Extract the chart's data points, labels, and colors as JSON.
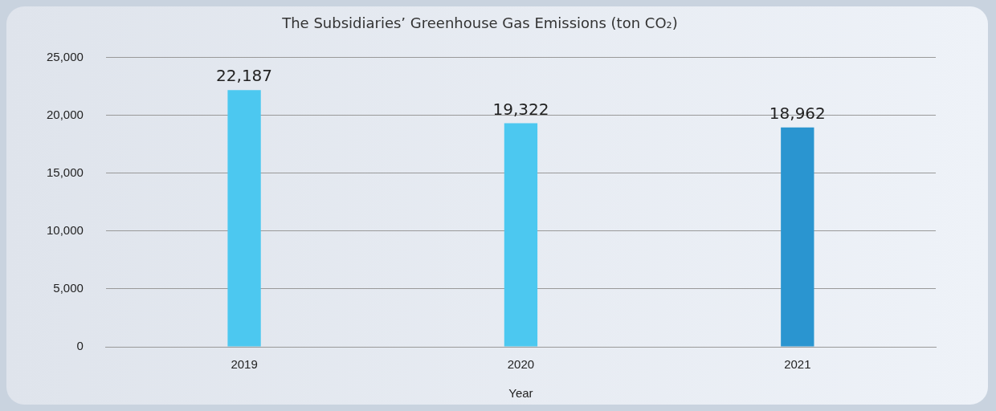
{
  "chart_data": {
    "type": "bar",
    "title": "The Subsidiaries’ Greenhouse Gas Emissions (ton CO₂)",
    "xlabel": "Year",
    "categories": [
      "2019",
      "2020",
      "2021"
    ],
    "values": [
      22187,
      19322,
      18962
    ],
    "value_labels": [
      "22,187",
      "19,322",
      "18,962"
    ],
    "colors": [
      "#4cc8f0",
      "#4cc8f0",
      "#2a95d0"
    ],
    "ylim": [
      0,
      25000
    ],
    "yticks": [
      0,
      {
        "value": 5000,
        "label": "5,000"
      },
      {
        "value": 10000,
        "label": "10,000"
      },
      {
        "value": 15000,
        "label": "15,000"
      },
      {
        "value": 20000,
        "label": "20,000"
      },
      {
        "value": 25000,
        "label": "25,000"
      }
    ],
    "grid": "y",
    "legend": false
  }
}
